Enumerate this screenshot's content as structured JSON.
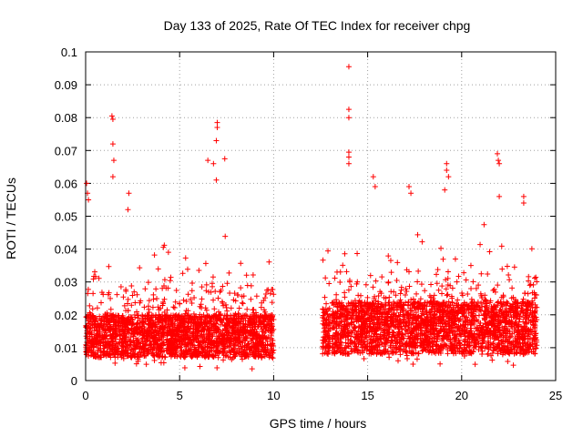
{
  "chart_data": {
    "type": "scatter",
    "title": "Day 133 of 2025, Rate Of TEC Index for receiver chpg",
    "xlabel": "GPS time / hours",
    "ylabel": "ROTI / TECUs",
    "xlim": [
      0,
      25
    ],
    "ylim": [
      0,
      0.1
    ],
    "xticks": [
      0,
      5,
      10,
      15,
      20,
      25
    ],
    "xtick_labels": [
      "0",
      "5",
      "10",
      "15",
      "20",
      "25"
    ],
    "yticks": [
      0,
      0.01,
      0.02,
      0.03,
      0.04,
      0.05,
      0.06,
      0.07,
      0.08,
      0.09,
      0.1
    ],
    "ytick_labels": [
      "0",
      "0.01",
      "0.02",
      "0.03",
      "0.04",
      "0.05",
      "0.06",
      "0.07",
      "0.08",
      "0.09",
      "0.1"
    ],
    "grid": true,
    "marker": "+",
    "color": "#ff0000",
    "series": [
      {
        "name": "ROTI",
        "segments": [
          {
            "x_range": [
              0.0,
              10.0
            ],
            "base_low": 0.007,
            "base_high": 0.02
          },
          {
            "x_range": [
              12.6,
              13.0
            ],
            "base_low": 0.008,
            "base_high": 0.022
          },
          {
            "x_range": [
              13.1,
              24.0
            ],
            "base_low": 0.008,
            "base_high": 0.024
          }
        ],
        "notable_points": [
          {
            "x": 0.05,
            "y": 0.06
          },
          {
            "x": 0.1,
            "y": 0.057
          },
          {
            "x": 0.15,
            "y": 0.055
          },
          {
            "x": 1.4,
            "y": 0.0805
          },
          {
            "x": 1.45,
            "y": 0.0795
          },
          {
            "x": 1.45,
            "y": 0.072
          },
          {
            "x": 1.5,
            "y": 0.067
          },
          {
            "x": 1.45,
            "y": 0.062
          },
          {
            "x": 2.3,
            "y": 0.057
          },
          {
            "x": 2.25,
            "y": 0.052
          },
          {
            "x": 6.5,
            "y": 0.067
          },
          {
            "x": 6.8,
            "y": 0.066
          },
          {
            "x": 7.0,
            "y": 0.0785
          },
          {
            "x": 7.0,
            "y": 0.077
          },
          {
            "x": 6.95,
            "y": 0.073
          },
          {
            "x": 6.95,
            "y": 0.061
          },
          {
            "x": 7.4,
            "y": 0.0675
          },
          {
            "x": 14.0,
            "y": 0.0955
          },
          {
            "x": 14.0,
            "y": 0.0825
          },
          {
            "x": 14.0,
            "y": 0.08
          },
          {
            "x": 14.0,
            "y": 0.0695
          },
          {
            "x": 14.0,
            "y": 0.068
          },
          {
            "x": 14.0,
            "y": 0.066
          },
          {
            "x": 15.3,
            "y": 0.062
          },
          {
            "x": 15.4,
            "y": 0.059
          },
          {
            "x": 17.2,
            "y": 0.059
          },
          {
            "x": 17.3,
            "y": 0.057
          },
          {
            "x": 19.2,
            "y": 0.066
          },
          {
            "x": 19.2,
            "y": 0.064
          },
          {
            "x": 19.3,
            "y": 0.062
          },
          {
            "x": 19.1,
            "y": 0.058
          },
          {
            "x": 21.9,
            "y": 0.069
          },
          {
            "x": 21.95,
            "y": 0.067
          },
          {
            "x": 22.0,
            "y": 0.066
          },
          {
            "x": 22.0,
            "y": 0.056
          },
          {
            "x": 23.3,
            "y": 0.056
          },
          {
            "x": 23.3,
            "y": 0.054
          }
        ]
      }
    ]
  }
}
